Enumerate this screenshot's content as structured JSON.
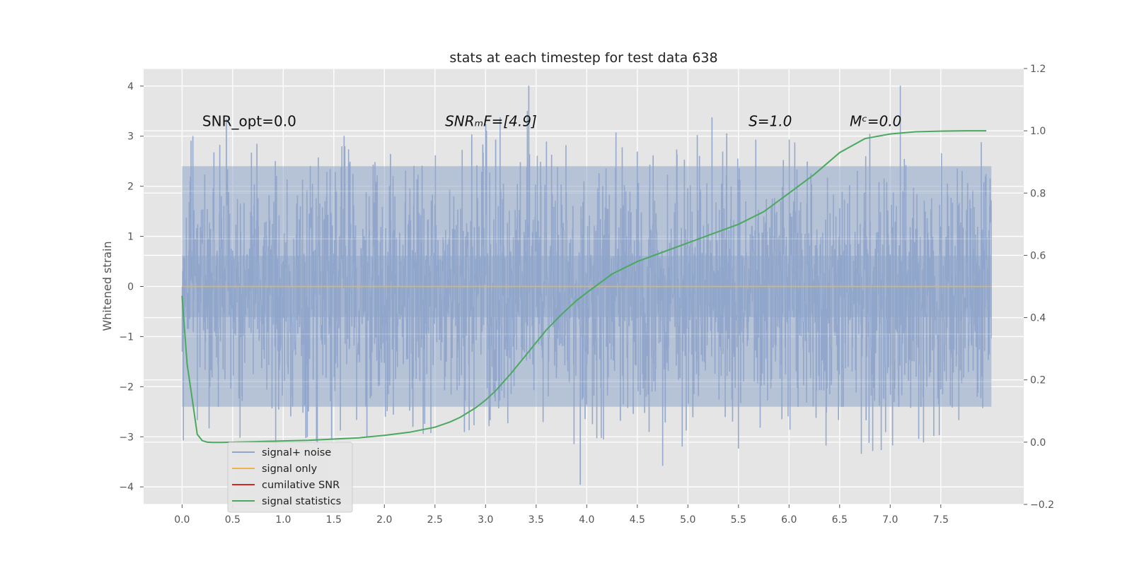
{
  "chart_data": {
    "type": "line",
    "title": "stats at each timestep for test data 638",
    "ylabel": "Whitened strain",
    "xlabel": "",
    "xlim": [
      -0.38,
      8.32
    ],
    "ylim": [
      -4.35,
      4.35
    ],
    "y2lim": [
      -0.2,
      1.2
    ],
    "xticks": [
      0.0,
      0.5,
      1.0,
      1.5,
      2.0,
      2.5,
      3.0,
      3.5,
      4.0,
      4.5,
      5.0,
      5.5,
      6.0,
      6.5,
      7.0,
      7.5
    ],
    "xtick_labels": [
      "0.0",
      "0.5",
      "1.0",
      "1.5",
      "2.0",
      "2.5",
      "3.0",
      "3.5",
      "4.0",
      "4.5",
      "5.0",
      "5.5",
      "6.0",
      "6.5",
      "7.0",
      "7.5"
    ],
    "yticks": [
      -4,
      -3,
      -2,
      -1,
      0,
      1,
      2,
      3,
      4
    ],
    "ytick_labels": [
      "−4",
      "−3",
      "−2",
      "−1",
      "0",
      "1",
      "2",
      "3",
      "4"
    ],
    "y2ticks": [
      -0.2,
      0.0,
      0.2,
      0.4,
      0.6,
      0.8,
      1.0,
      1.2
    ],
    "y2tick_labels": [
      "−0.2",
      "0.0",
      "0.2",
      "0.4",
      "0.6",
      "0.8",
      "1.0",
      "1.2"
    ],
    "grid": true,
    "legend_position": "lower-left",
    "series": [
      {
        "name": "signal+ noise",
        "color": "#8fa5cb",
        "axis": "left",
        "kind": "noise",
        "x_range": [
          0.0,
          8.0
        ],
        "typical_peak": 2.4,
        "max_peak": 4.0,
        "min_peak": -3.95
      },
      {
        "name": "signal only",
        "color": "#f0b34b",
        "axis": "left",
        "x": [
          0.0,
          8.0
        ],
        "y": [
          0.0,
          0.0
        ]
      },
      {
        "name": "cumilative SNR",
        "color": "#d62728",
        "axis": "left",
        "x": [],
        "y": []
      },
      {
        "name": "signal statistics",
        "color": "#4aa95e",
        "axis": "right",
        "x": [
          0.0,
          0.05,
          0.1,
          0.15,
          0.2,
          0.25,
          0.3,
          0.4,
          0.5,
          0.75,
          1.0,
          1.25,
          1.5,
          1.75,
          2.0,
          2.25,
          2.5,
          2.65,
          2.75,
          2.9,
          3.0,
          3.1,
          3.25,
          3.4,
          3.5,
          3.6,
          3.75,
          3.9,
          4.0,
          4.25,
          4.5,
          4.75,
          5.0,
          5.25,
          5.5,
          5.75,
          6.0,
          6.25,
          6.5,
          6.75,
          7.0,
          7.25,
          7.5,
          7.75,
          7.95
        ],
        "y": [
          0.47,
          0.25,
          0.14,
          0.025,
          0.005,
          0.0,
          -0.001,
          -0.001,
          0.0,
          0.002,
          0.004,
          0.006,
          0.01,
          0.014,
          0.022,
          0.032,
          0.048,
          0.065,
          0.08,
          0.11,
          0.135,
          0.165,
          0.22,
          0.28,
          0.32,
          0.36,
          0.41,
          0.455,
          0.48,
          0.54,
          0.58,
          0.61,
          0.64,
          0.67,
          0.7,
          0.74,
          0.8,
          0.86,
          0.93,
          0.975,
          0.99,
          0.997,
          0.999,
          1.0,
          1.0
        ]
      }
    ],
    "annotations": [
      {
        "text": "SNR_opt=0.0",
        "x": 0.2,
        "y": 3.2
      },
      {
        "text": "SNRₘF=[4.9]",
        "x": 2.6,
        "y": 3.2
      },
      {
        "text": "S=1.0",
        "x": 5.6,
        "y": 3.2
      },
      {
        "text": "Mᶜ=0.0",
        "x": 6.6,
        "y": 3.2
      }
    ]
  }
}
